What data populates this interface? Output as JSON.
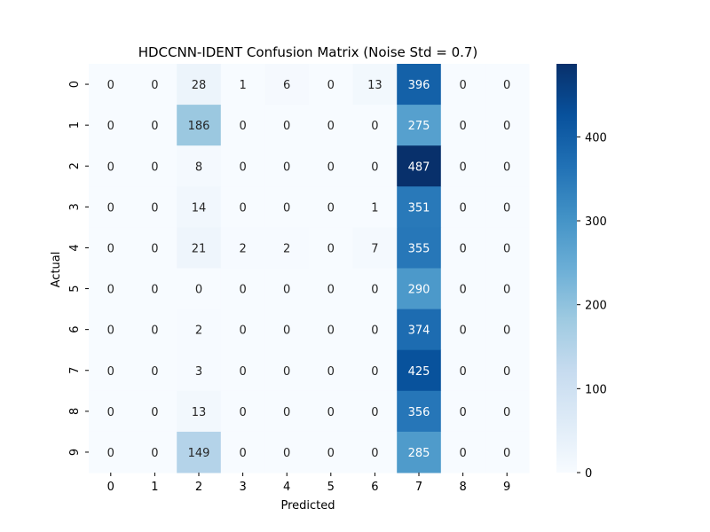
{
  "chart_data": {
    "type": "heatmap",
    "title": "HDCCNN-IDENT Confusion Matrix (Noise Std = 0.7)",
    "xlabel": "Predicted",
    "ylabel": "Actual",
    "x_categories": [
      "0",
      "1",
      "2",
      "3",
      "4",
      "5",
      "6",
      "7",
      "8",
      "9"
    ],
    "y_categories": [
      "0",
      "1",
      "2",
      "3",
      "4",
      "5",
      "6",
      "7",
      "8",
      "9"
    ],
    "values": [
      [
        0,
        0,
        28,
        1,
        6,
        0,
        13,
        396,
        0,
        0
      ],
      [
        0,
        0,
        186,
        0,
        0,
        0,
        0,
        275,
        0,
        0
      ],
      [
        0,
        0,
        8,
        0,
        0,
        0,
        0,
        487,
        0,
        0
      ],
      [
        0,
        0,
        14,
        0,
        0,
        0,
        1,
        351,
        0,
        0
      ],
      [
        0,
        0,
        21,
        2,
        2,
        0,
        7,
        355,
        0,
        0
      ],
      [
        0,
        0,
        0,
        0,
        0,
        0,
        0,
        290,
        0,
        0
      ],
      [
        0,
        0,
        2,
        0,
        0,
        0,
        0,
        374,
        0,
        0
      ],
      [
        0,
        0,
        3,
        0,
        0,
        0,
        0,
        425,
        0,
        0
      ],
      [
        0,
        0,
        13,
        0,
        0,
        0,
        0,
        356,
        0,
        0
      ],
      [
        0,
        0,
        149,
        0,
        0,
        0,
        0,
        285,
        0,
        0
      ]
    ],
    "colorbar": {
      "colormap": "Blues",
      "range": [
        0,
        487
      ],
      "ticks": [
        "0",
        "100",
        "200",
        "300",
        "400"
      ]
    },
    "annotations": "cell counts shown in each cell",
    "grid": false
  }
}
